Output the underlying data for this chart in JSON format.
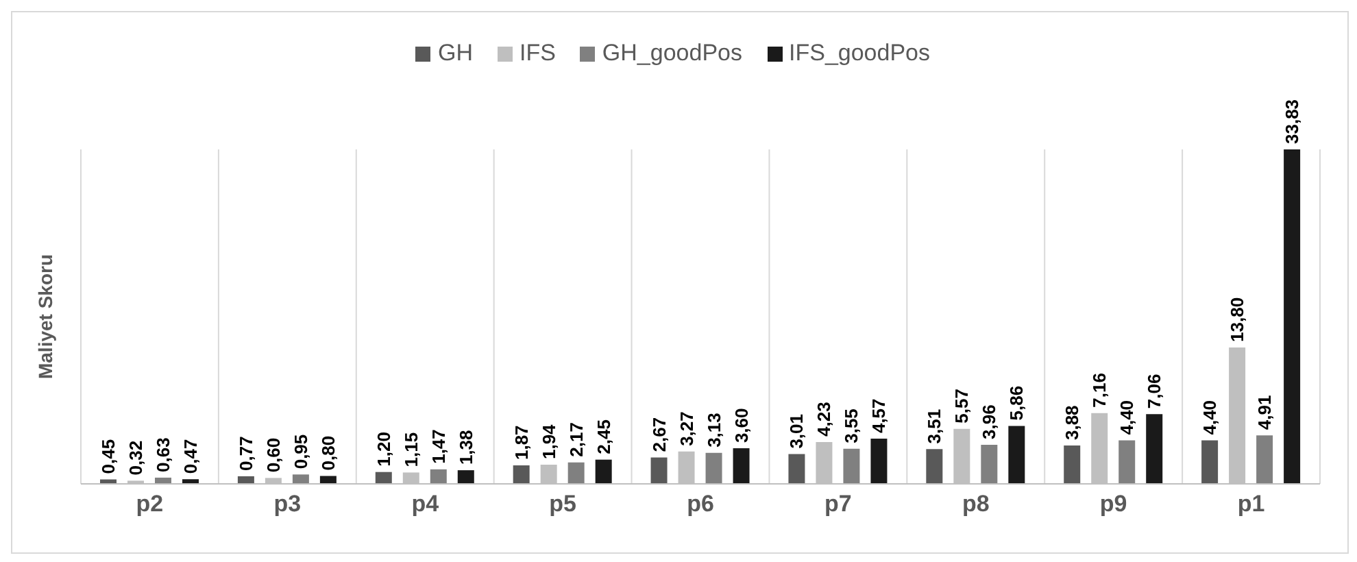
{
  "chart_data": {
    "type": "bar",
    "ylabel": "Maliyet Skoru",
    "categories": [
      "p2",
      "p3",
      "p4",
      "p5",
      "p6",
      "p7",
      "p8",
      "p9",
      "p1"
    ],
    "series": [
      {
        "name": "GH",
        "color": "#595959",
        "values": [
          0.45,
          0.77,
          1.2,
          1.87,
          2.67,
          3.01,
          3.51,
          3.88,
          4.4
        ],
        "value_labels": [
          "0,45",
          "0,77",
          "1,20",
          "1,87",
          "2,67",
          "3,01",
          "3,51",
          "3,88",
          "4,40"
        ]
      },
      {
        "name": "IFS",
        "color": "#bfbfbf",
        "values": [
          0.32,
          0.6,
          1.15,
          1.94,
          3.27,
          4.23,
          5.57,
          7.16,
          13.8
        ],
        "value_labels": [
          "0,32",
          "0,60",
          "1,15",
          "1,94",
          "3,27",
          "4,23",
          "5,57",
          "7,16",
          "13,80"
        ]
      },
      {
        "name": "GH_goodPos",
        "color": "#808080",
        "values": [
          0.63,
          0.95,
          1.47,
          2.17,
          3.13,
          3.55,
          3.96,
          4.4,
          4.91
        ],
        "value_labels": [
          "0,63",
          "0,95",
          "1,47",
          "2,17",
          "3,13",
          "3,55",
          "3,96",
          "4,40",
          "4,91"
        ]
      },
      {
        "name": "IFS_goodPos",
        "color": "#1a1a1a",
        "values": [
          0.47,
          0.8,
          1.38,
          2.45,
          3.6,
          4.57,
          5.86,
          7.06,
          33.83
        ],
        "value_labels": [
          "0,47",
          "0,80",
          "1,38",
          "2,45",
          "3,60",
          "4,57",
          "5,86",
          "7,06",
          "33,83"
        ]
      }
    ],
    "grid": "x",
    "legend": "top"
  }
}
